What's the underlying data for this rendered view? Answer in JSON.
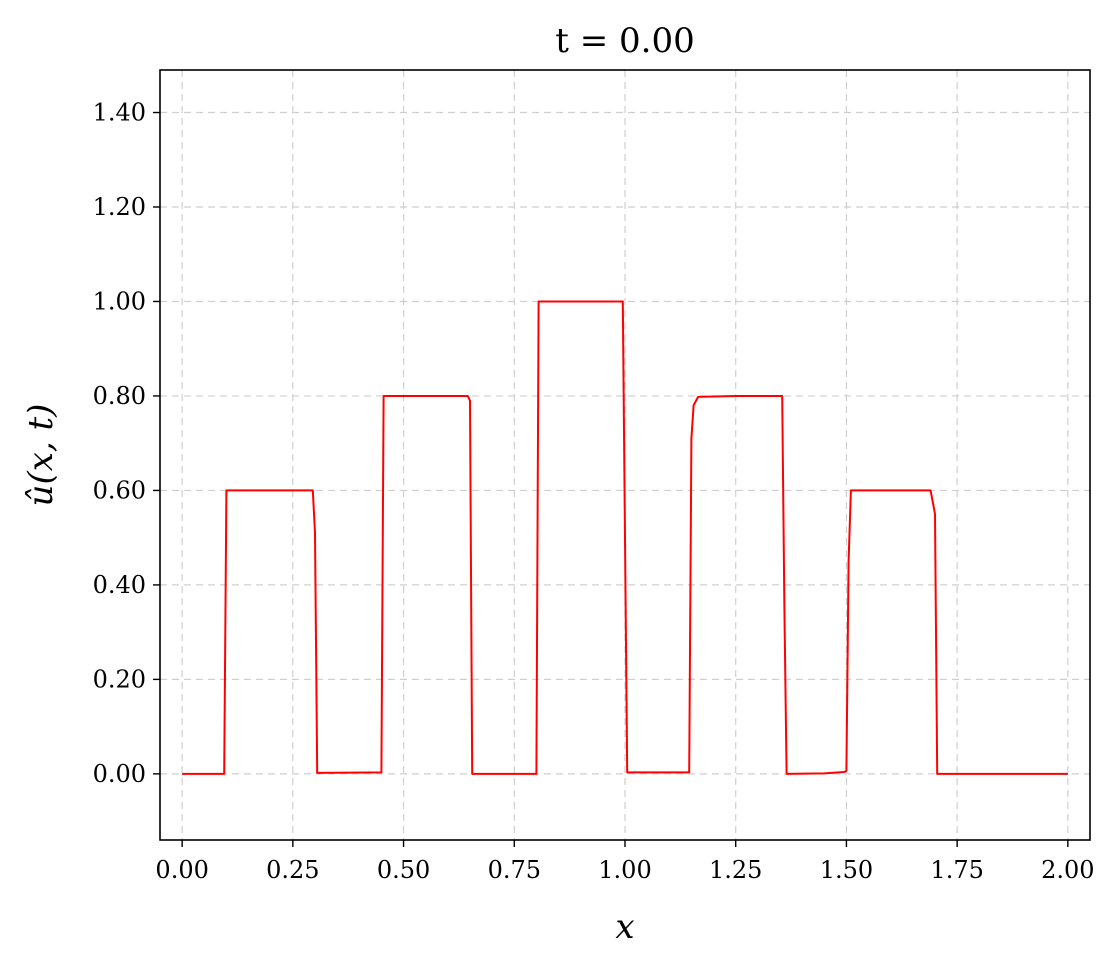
{
  "chart_data": {
    "type": "line",
    "title": "t = 0.00",
    "xlabel": "x",
    "ylabel": "û(x, t)",
    "xlim": [
      -0.05,
      2.05
    ],
    "ylim": [
      -0.14,
      1.49
    ],
    "x_ticks": [
      0.0,
      0.25,
      0.5,
      0.75,
      1.0,
      1.25,
      1.5,
      1.75,
      2.0
    ],
    "x_tick_labels": [
      "0.00",
      "0.25",
      "0.50",
      "0.75",
      "1.00",
      "1.25",
      "1.50",
      "1.75",
      "2.00"
    ],
    "y_ticks": [
      0.0,
      0.2,
      0.4,
      0.6,
      0.8,
      1.0,
      1.2,
      1.4
    ],
    "y_tick_labels": [
      "0.00",
      "0.20",
      "0.40",
      "0.60",
      "0.80",
      "1.00",
      "1.20",
      "1.40"
    ],
    "grid": true,
    "legend": "none",
    "series": [
      {
        "color": "#ff0000",
        "x": [
          0.0,
          0.095,
          0.1,
          0.295,
          0.3,
          0.305,
          0.45,
          0.455,
          0.645,
          0.65,
          0.655,
          0.8,
          0.805,
          0.995,
          1.0,
          1.005,
          1.145,
          1.15,
          1.155,
          1.165,
          1.25,
          1.355,
          1.36,
          1.365,
          1.45,
          1.495,
          1.5,
          1.505,
          1.51,
          1.69,
          1.7,
          1.705,
          2.0
        ],
        "y": [
          0.0,
          0.0,
          0.6,
          0.6,
          0.51,
          0.002,
          0.003,
          0.8,
          0.8,
          0.79,
          0.0,
          0.0,
          1.0,
          1.0,
          0.5,
          0.003,
          0.003,
          0.71,
          0.78,
          0.798,
          0.8,
          0.8,
          0.35,
          0.0,
          0.001,
          0.004,
          0.006,
          0.45,
          0.6,
          0.6,
          0.55,
          0.0,
          0.0
        ]
      }
    ]
  }
}
